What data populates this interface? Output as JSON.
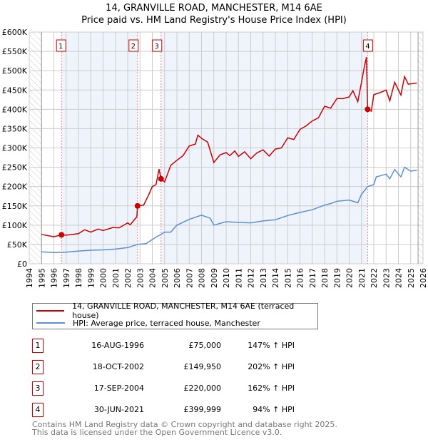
{
  "chart_data": {
    "type": "line",
    "title": "14, GRANVILLE ROAD, MANCHESTER, M14 6AE",
    "subtitle": "Price paid vs. HM Land Registry's House Price Index (HPI)",
    "xlim": [
      1994,
      2026
    ],
    "ylim": [
      0,
      600000
    ],
    "y_ticks": [
      {
        "v": 0,
        "label": "£0"
      },
      {
        "v": 50000,
        "label": "£50K"
      },
      {
        "v": 100000,
        "label": "£100K"
      },
      {
        "v": 150000,
        "label": "£150K"
      },
      {
        "v": 200000,
        "label": "£200K"
      },
      {
        "v": 250000,
        "label": "£250K"
      },
      {
        "v": 300000,
        "label": "£300K"
      },
      {
        "v": 350000,
        "label": "£350K"
      },
      {
        "v": 400000,
        "label": "£400K"
      },
      {
        "v": 450000,
        "label": "£450K"
      },
      {
        "v": 500000,
        "label": "£500K"
      },
      {
        "v": 550000,
        "label": "£550K"
      },
      {
        "v": 600000,
        "label": "£600K"
      }
    ],
    "x_ticks": [
      "1994",
      "1995",
      "1996",
      "1997",
      "1998",
      "1999",
      "2000",
      "2001",
      "2002",
      "2003",
      "2004",
      "2005",
      "2006",
      "2007",
      "2008",
      "2009",
      "2010",
      "2011",
      "2012",
      "2013",
      "2014",
      "2015",
      "2016",
      "2017",
      "2018",
      "2019",
      "2020",
      "2021",
      "2022",
      "2023",
      "2024",
      "2025",
      "2026"
    ],
    "grid": true,
    "series": [
      {
        "name": "14, GRANVILLE ROAD, MANCHESTER, M14 6AE (terraced house)",
        "color": "#cc0000",
        "x": [
          1995,
          1996,
          1996.62,
          1997,
          1998,
          1998.5,
          1999,
          1999.6,
          2000,
          2000.8,
          2001.3,
          2002,
          2002.2,
          2002.75,
          2002.8,
          2003.3,
          2003.7,
          2004,
          2004.3,
          2004.55,
          2004.71,
          2005,
          2005.5,
          2006,
          2006.5,
          2007,
          2007.5,
          2007.7,
          2008,
          2008.5,
          2009,
          2009.5,
          2010,
          2010.3,
          2010.7,
          2011,
          2011.5,
          2012,
          2012.5,
          2013,
          2013.5,
          2014,
          2014.5,
          2015,
          2015.5,
          2016,
          2016.5,
          2017,
          2017.5,
          2018,
          2018.5,
          2019,
          2019.5,
          2020,
          2020.3,
          2020.7,
          2021,
          2021.2,
          2021.4,
          2021.5,
          2021.8,
          2022,
          2022.5,
          2023,
          2023.3,
          2023.7,
          2024.2,
          2024.5,
          2024.8,
          2025.5
        ],
        "y": [
          76000,
          70000,
          75000,
          74000,
          78000,
          88000,
          82000,
          90000,
          86000,
          94000,
          93000,
          106000,
          101000,
          122000,
          149950,
          152000,
          178000,
          200000,
          205000,
          245000,
          220000,
          212000,
          255000,
          268000,
          280000,
          305000,
          310000,
          333000,
          325000,
          315000,
          262000,
          282000,
          288000,
          280000,
          292000,
          278000,
          290000,
          272000,
          287000,
          295000,
          279000,
          297000,
          300000,
          326000,
          322000,
          348000,
          357000,
          370000,
          378000,
          408000,
          403000,
          428000,
          428000,
          432000,
          448000,
          420000,
          470000,
          505000,
          535000,
          399999,
          395000,
          438000,
          443000,
          450000,
          422000,
          470000,
          437000,
          485000,
          465000,
          468000
        ]
      },
      {
        "name": "HPI: Average price, terraced house, Manchester",
        "color": "#5b8fd6",
        "x": [
          1995,
          1996,
          1997,
          1998,
          1999,
          2000,
          2001,
          2002,
          2002.8,
          2003.5,
          2004,
          2005,
          2005.5,
          2006,
          2007,
          2008,
          2008.7,
          2009,
          2010,
          2011,
          2012,
          2013,
          2014,
          2015,
          2016,
          2017,
          2018,
          2018.5,
          2019,
          2020,
          2020.7,
          2021,
          2021.5,
          2022,
          2022.2,
          2023,
          2023.3,
          2023.7,
          2024.2,
          2024.5,
          2025,
          2025.5
        ],
        "y": [
          31000,
          29000,
          30000,
          33000,
          35000,
          36000,
          38000,
          42000,
          50000,
          52000,
          63000,
          82000,
          82000,
          100000,
          115000,
          126000,
          118000,
          100000,
          109000,
          107000,
          106000,
          111000,
          114000,
          125000,
          133000,
          140000,
          152000,
          156000,
          162000,
          165000,
          158000,
          180000,
          200000,
          205000,
          225000,
          232000,
          220000,
          244000,
          225000,
          250000,
          240000,
          242000
        ]
      }
    ],
    "sales": [
      {
        "label": "1",
        "x": 2002.0,
        "date_x": 1996.62,
        "price": 75000
      },
      {
        "label": "2",
        "date_x": 2002.8,
        "price": 149950
      },
      {
        "label": "3",
        "date_x": 2004.71,
        "price": 220000
      },
      {
        "label": "4",
        "date_x": 2021.5,
        "price": 399999
      }
    ],
    "data_end": 2025.6
  },
  "legend": {
    "red": "14, GRANVILLE ROAD, MANCHESTER, M14 6AE (terraced house)",
    "blue": "HPI: Average price, terraced house, Manchester"
  },
  "table": [
    {
      "n": "1",
      "date": "16-AUG-1996",
      "price": "£75,000",
      "hpi": "147% ↑ HPI"
    },
    {
      "n": "2",
      "date": "18-OCT-2002",
      "price": "£149,950",
      "hpi": "202% ↑ HPI"
    },
    {
      "n": "3",
      "date": "17-SEP-2004",
      "price": "£220,000",
      "hpi": "162% ↑ HPI"
    },
    {
      "n": "4",
      "date": "30-JUN-2021",
      "price": "£399,999",
      "hpi": "94% ↑ HPI"
    }
  ],
  "footer": {
    "line1": "Contains HM Land Registry data © Crown copyright and database right 2025.",
    "line2": "This data is licensed under the Open Government Licence v3.0."
  }
}
